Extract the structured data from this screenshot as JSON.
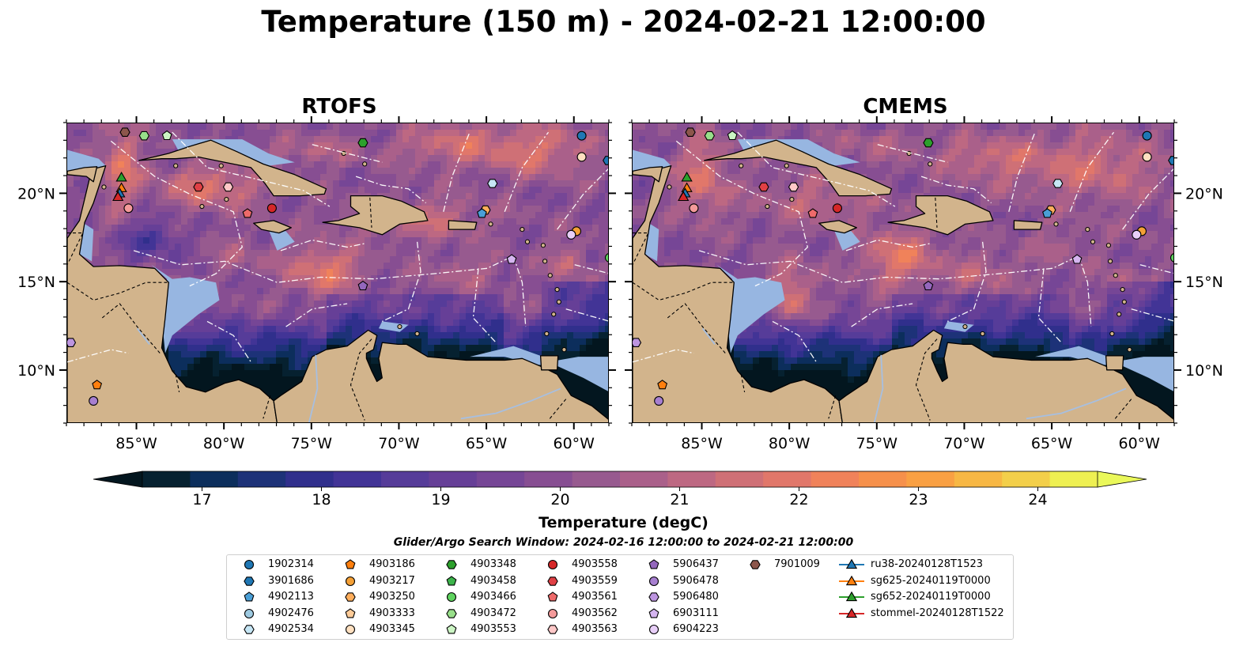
{
  "title": "Temperature (150 m) - 2024-02-21 12:00:00",
  "panels": [
    {
      "title": "RTOFS",
      "variant": "rtofs"
    },
    {
      "title": "CMEMS",
      "variant": "cmems"
    }
  ],
  "axes": {
    "lon_range": [
      -89,
      -58
    ],
    "lat_range": [
      7,
      24
    ],
    "lon_ticks": [
      "85°W",
      "80°W",
      "75°W",
      "70°W",
      "65°W",
      "60°W"
    ],
    "lon_tick_values": [
      -85,
      -80,
      -75,
      -70,
      -65,
      -60
    ],
    "lat_ticks": [
      "20°N",
      "15°N",
      "10°N"
    ],
    "lat_tick_values": [
      20,
      15,
      10
    ]
  },
  "colorbar": {
    "label": "Temperature (degC)",
    "min": 16.5,
    "max": 24.5,
    "step": 0.5,
    "extend": "both",
    "tick_labels": [
      "17",
      "18",
      "19",
      "20",
      "21",
      "22",
      "23",
      "24"
    ],
    "tick_values": [
      17,
      18,
      19,
      20,
      21,
      22,
      23,
      24
    ],
    "colors": [
      "#062130",
      "#0c2e5c",
      "#1d3278",
      "#302f8c",
      "#423496",
      "#563c99",
      "#663f97",
      "#764696",
      "#874e92",
      "#975a8f",
      "#aa608a",
      "#bd6882",
      "#cf7076",
      "#e1776a",
      "#f0825a",
      "#f6904b",
      "#f9a043",
      "#f7b744",
      "#f3cf4a",
      "#eef052"
    ],
    "under_color": "#03161f",
    "over_color": "#eaf85a"
  },
  "colors": {
    "land": "#d2b48c",
    "shelf": "#97b6e1",
    "border_white": "#ffffff"
  },
  "search_window": "Glider/Argo Search Window: 2024-02-16 12:00:00 to 2024-02-21 12:00:00",
  "legend": [
    {
      "label": "1902314",
      "marker": "circle",
      "color": "#1f77b4"
    },
    {
      "label": "3901686",
      "marker": "hexagon",
      "color": "#1f77b4"
    },
    {
      "label": "4902113",
      "marker": "pentagon",
      "color": "#4a9fd6"
    },
    {
      "label": "4902476",
      "marker": "circle",
      "color": "#9ecae1"
    },
    {
      "label": "4902534",
      "marker": "hexagon",
      "color": "#c6e6f5"
    },
    {
      "label": "4903186",
      "marker": "pentagon",
      "color": "#ff7f0e"
    },
    {
      "label": "4903217",
      "marker": "circle",
      "color": "#f4a036"
    },
    {
      "label": "4903250",
      "marker": "hexagon",
      "color": "#ffae5c"
    },
    {
      "label": "4903333",
      "marker": "pentagon",
      "color": "#ffcc99"
    },
    {
      "label": "4903345",
      "marker": "circle",
      "color": "#ffe0c0"
    },
    {
      "label": "4903348",
      "marker": "hexagon",
      "color": "#2ca02c"
    },
    {
      "label": "4903458",
      "marker": "pentagon",
      "color": "#3cb44b"
    },
    {
      "label": "4903466",
      "marker": "circle",
      "color": "#5fd35f"
    },
    {
      "label": "4903472",
      "marker": "hexagon",
      "color": "#98df8a"
    },
    {
      "label": "4903553",
      "marker": "pentagon",
      "color": "#ccf5c4"
    },
    {
      "label": "4903558",
      "marker": "circle",
      "color": "#d62728"
    },
    {
      "label": "4903559",
      "marker": "hexagon",
      "color": "#e04045"
    },
    {
      "label": "4903561",
      "marker": "pentagon",
      "color": "#ee6a6a"
    },
    {
      "label": "4903562",
      "marker": "circle",
      "color": "#f49a9a"
    },
    {
      "label": "4903563",
      "marker": "hexagon",
      "color": "#ffc8c8"
    },
    {
      "label": "5906437",
      "marker": "pentagon",
      "color": "#9467bd"
    },
    {
      "label": "5906478",
      "marker": "circle",
      "color": "#a77fd0"
    },
    {
      "label": "5906480",
      "marker": "hexagon",
      "color": "#bd95e0"
    },
    {
      "label": "6903111",
      "marker": "pentagon",
      "color": "#d5b5f0"
    },
    {
      "label": "6904223",
      "marker": "circle",
      "color": "#e8cff8"
    },
    {
      "label": "7901009",
      "marker": "hexagon",
      "color": "#8c564b"
    },
    {
      "label": "ru38-20240128T1523",
      "marker": "triangle-line",
      "color": "#1f77b4"
    },
    {
      "label": "sg625-20240119T0000",
      "marker": "triangle-line",
      "color": "#ff7f0e"
    },
    {
      "label": "sg652-20240119T0000",
      "marker": "triangle-line",
      "color": "#2ca02c"
    },
    {
      "label": "stommel-20240128T1522",
      "marker": "triangle-line",
      "color": "#d62728"
    }
  ],
  "floats": [
    {
      "id": "1902314",
      "lon": -59.6,
      "lat": 23.3
    },
    {
      "id": "4903345",
      "lon": -59.6,
      "lat": 22.1
    },
    {
      "id": "3901686",
      "lon": -58.1,
      "lat": 21.9
    },
    {
      "id": "4902534",
      "lon": -64.7,
      "lat": 20.6
    },
    {
      "id": "4903348",
      "lon": -72.1,
      "lat": 22.9
    },
    {
      "id": "7901009",
      "lon": -85.7,
      "lat": 23.5
    },
    {
      "id": "4903472",
      "lon": -84.6,
      "lat": 23.3
    },
    {
      "id": "4903553",
      "lon": -83.3,
      "lat": 23.3
    },
    {
      "id": "4903559",
      "lon": -81.5,
      "lat": 20.4
    },
    {
      "id": "4903563",
      "lon": -79.8,
      "lat": 20.4
    },
    {
      "id": "4903558",
      "lon": -77.3,
      "lat": 19.2
    },
    {
      "id": "4903561",
      "lon": -78.7,
      "lat": 18.9
    },
    {
      "id": "4903562",
      "lon": -85.5,
      "lat": 19.2
    },
    {
      "id": "4903250",
      "lon": -65.1,
      "lat": 19.1
    },
    {
      "id": "4902113",
      "lon": -65.3,
      "lat": 18.9
    },
    {
      "id": "4903217",
      "lon": -59.9,
      "lat": 17.9
    },
    {
      "id": "6904223",
      "lon": -60.2,
      "lat": 17.7
    },
    {
      "id": "6903111",
      "lon": -63.6,
      "lat": 16.3
    },
    {
      "id": "4903466",
      "lon": -58.0,
      "lat": 16.4
    },
    {
      "id": "5906437",
      "lon": -72.1,
      "lat": 14.8
    },
    {
      "id": "5906480",
      "lon": -88.8,
      "lat": 11.6
    },
    {
      "id": "4903186",
      "lon": -87.3,
      "lat": 9.2
    },
    {
      "id": "5906478",
      "lon": -87.5,
      "lat": 8.3
    }
  ],
  "gliders": [
    {
      "id": "sg652-20240119T0000",
      "lon": -85.9,
      "lat": 20.9
    },
    {
      "id": "sg625-20240119T0000",
      "lon": -85.9,
      "lat": 20.3
    },
    {
      "id": "ru38-20240128T1523",
      "lon": -86.0,
      "lat": 20.0
    },
    {
      "id": "stommel-20240128T1522",
      "lon": -86.1,
      "lat": 19.8
    }
  ]
}
